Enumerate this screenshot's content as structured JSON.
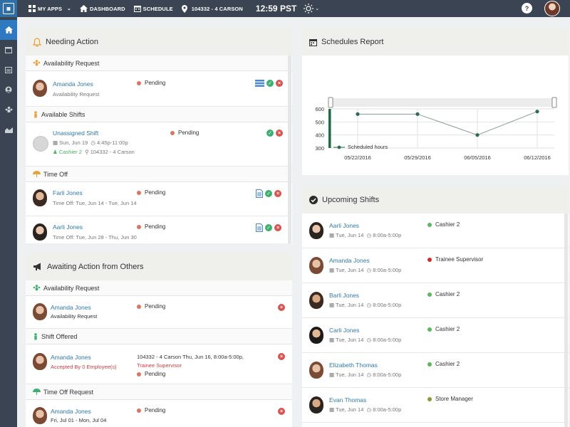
{
  "topbar": {
    "apps_label": "MY APPS",
    "dashboard_label": "DASHBOARD",
    "schedule_label": "SCHEDULE",
    "location_label": "104332 - 4 CARSON",
    "time_hour": "12",
    "time_min": "59",
    "time_zone": "PST",
    "help_label": "?"
  },
  "needing": {
    "title": "Needing Action",
    "sections": {
      "avail": "Availability Request",
      "shifts": "Available Shifts",
      "timeoff": "Time Off"
    },
    "rows": {
      "r1": {
        "name": "Amanda Jones",
        "sub": "Availability Request",
        "status": "Pending"
      },
      "r2": {
        "name": "Unassigned Shift",
        "date": "Sun, Jun 19",
        "time": "4:45p-11:00p",
        "role": "Cashier 2",
        "loc": "104332 - 4 Carson",
        "status": "Pending"
      },
      "r3": {
        "name": "Farli Jones",
        "sub": "Time Off: Tue, Jun 14 - Tue, Jun 14",
        "status": "Pending"
      },
      "r4": {
        "name": "Aarli Jones",
        "sub": "Time Off: Tue, Jun 28 - Thu, Jun 30",
        "status": "Pending"
      }
    }
  },
  "awaiting": {
    "title": "Awaiting Action from Others",
    "sections": {
      "avail": "Availability Request",
      "offered": "Shift Offered",
      "timeoff": "Time Off Request"
    },
    "rows": {
      "r1": {
        "name": "Amanda Jones",
        "sub": "Availability Request",
        "status": "Pending"
      },
      "r2": {
        "name": "Amanda Jones",
        "sub": "Accepted By 0 Employee(s)",
        "detail": "104332 - 4 Carson Thu, Jun 16, 8:00a-5:00p,",
        "role": "Trainee Supervisor",
        "status": "Pending"
      },
      "r3": {
        "name": "Amanda Jones",
        "sub": "Fri, Jul 01 - Mon, Jul 04",
        "status": "Pending"
      }
    }
  },
  "report": {
    "title": "Schedules Report"
  },
  "chart_data": {
    "type": "line",
    "categories": [
      "05/22/2016",
      "05/29/2016",
      "06/05/2016",
      "06/12/2016"
    ],
    "series": [
      {
        "name": "Scheduled hours",
        "values": [
          560,
          560,
          400,
          580
        ],
        "color": "#2e6b4f"
      }
    ],
    "ylim": [
      300,
      600
    ],
    "yticks": [
      300,
      400,
      500,
      600
    ],
    "legend_position": "bottom-left",
    "grid": true
  },
  "upcoming": {
    "title": "Upcoming Shifts",
    "items": [
      {
        "name": "Aarli Jones",
        "date": "Tue, Jun 14",
        "time": "8:00a-5:00p",
        "role": "Cashier 2",
        "role_color": "#5cb85c"
      },
      {
        "name": "Amanda Jones",
        "date": "Tue, Jun 14",
        "time": "8:00a-5:00p",
        "role": "Trainee Supervisor",
        "role_color": "#c9302c"
      },
      {
        "name": "Barli Jones",
        "date": "Tue, Jun 14",
        "time": "8:00a-5:00p",
        "role": "Cashier 2",
        "role_color": "#5cb85c"
      },
      {
        "name": "Carli Jones",
        "date": "Tue, Jun 14",
        "time": "8:00a-5:00p",
        "role": "Cashier 2",
        "role_color": "#5cb85c"
      },
      {
        "name": "Elizabeth Thomas",
        "date": "Tue, Jun 14",
        "time": "8:00a-5:00p",
        "role": "Cashier 2",
        "role_color": "#5cb85c"
      },
      {
        "name": "Evan Thomas",
        "date": "Tue, Jun 14",
        "time": "8:00a-5:00p",
        "role": "Store Manager",
        "role_color": "#8a9a3a"
      }
    ]
  },
  "colors": {
    "topbar": "#3a4452",
    "accent": "#2f79c0",
    "link": "#2f79a8",
    "pending": "#e0735c",
    "approve": "#3eae73",
    "reject": "#d9534f"
  }
}
